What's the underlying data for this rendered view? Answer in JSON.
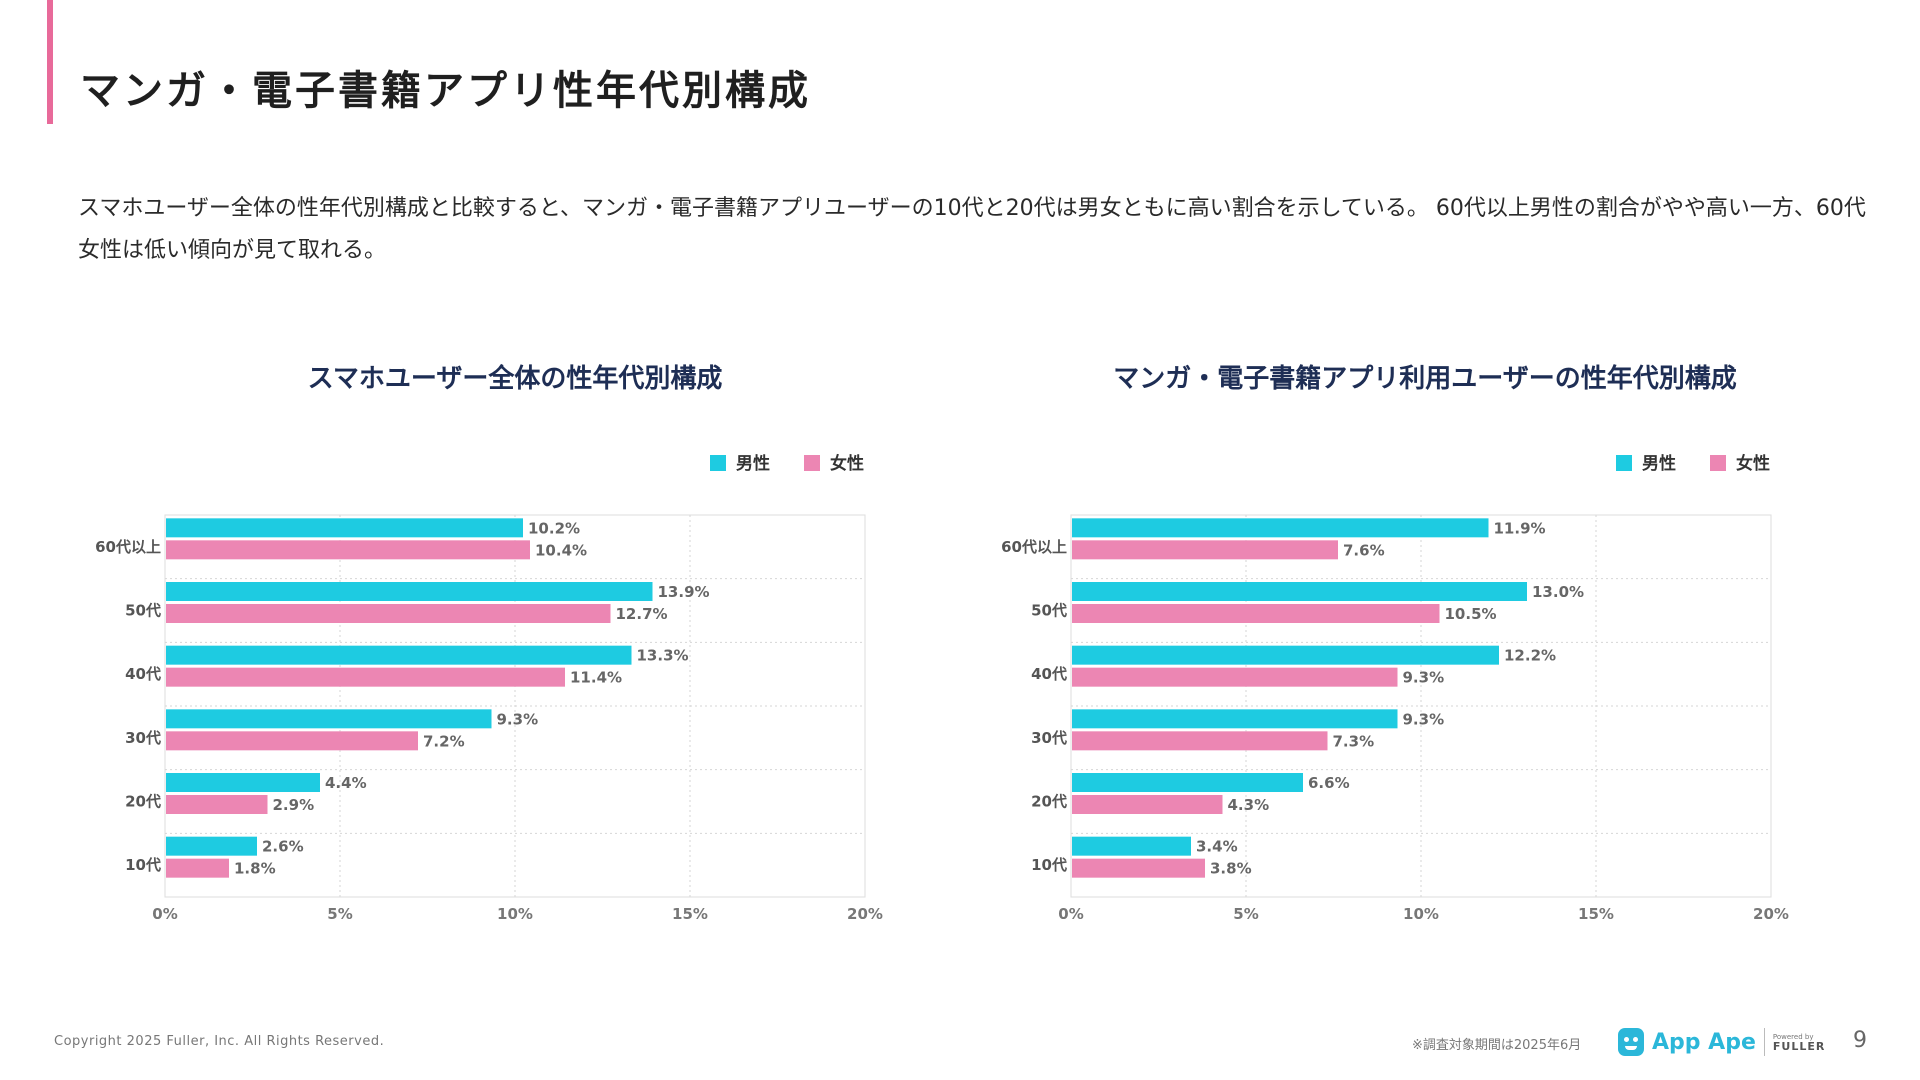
{
  "page": {
    "title": "マンガ・電子書籍アプリ性年代別構成",
    "description": "スマホユーザー全体の性年代別構成と比較すると、マンガ・電子書籍アプリユーザーの10代と20代は男女ともに高い割合を示している。 60代以上男性の割合がやや高い一方、60代女性は低い傾向が見て取れる。"
  },
  "colors": {
    "male": "#1ecbe1",
    "female": "#ec86b3",
    "accent": "#e86a9a",
    "chart_title": "#1e2e55"
  },
  "chart_data": [
    {
      "type": "bar",
      "orientation": "horizontal",
      "title": "スマホユーザー全体の性年代別構成",
      "categories": [
        "60代以上",
        "50代",
        "40代",
        "30代",
        "20代",
        "10代"
      ],
      "series": [
        {
          "name": "男性",
          "values": [
            10.2,
            13.9,
            13.3,
            9.3,
            4.4,
            2.6
          ]
        },
        {
          "name": "女性",
          "values": [
            10.4,
            12.7,
            11.4,
            7.2,
            2.9,
            1.8
          ]
        }
      ],
      "xlim": [
        0,
        20
      ],
      "xticks": [
        "0%",
        "5%",
        "10%",
        "15%",
        "20%"
      ],
      "legend_position": "top-right",
      "grid": true,
      "unit": "%"
    },
    {
      "type": "bar",
      "orientation": "horizontal",
      "title": "マンガ・電子書籍アプリ利用ユーザーの性年代別構成",
      "categories": [
        "60代以上",
        "50代",
        "40代",
        "30代",
        "20代",
        "10代"
      ],
      "series": [
        {
          "name": "男性",
          "values": [
            11.9,
            13.0,
            12.2,
            9.3,
            6.6,
            3.4
          ]
        },
        {
          "name": "女性",
          "values": [
            7.6,
            10.5,
            9.3,
            7.3,
            4.3,
            3.8
          ]
        }
      ],
      "xlim": [
        0,
        20
      ],
      "xticks": [
        "0%",
        "5%",
        "10%",
        "15%",
        "20%"
      ],
      "legend_position": "top-right",
      "grid": true,
      "unit": "%"
    }
  ],
  "footer": {
    "copyright": "Copyright 2025 Fuller, Inc. All Rights Reserved.",
    "note": "※調査対象期間は2025年6月",
    "logo_text": "App Ape",
    "powered_by": "Powered by",
    "powered_company": "FULLER",
    "page_number": "9"
  }
}
